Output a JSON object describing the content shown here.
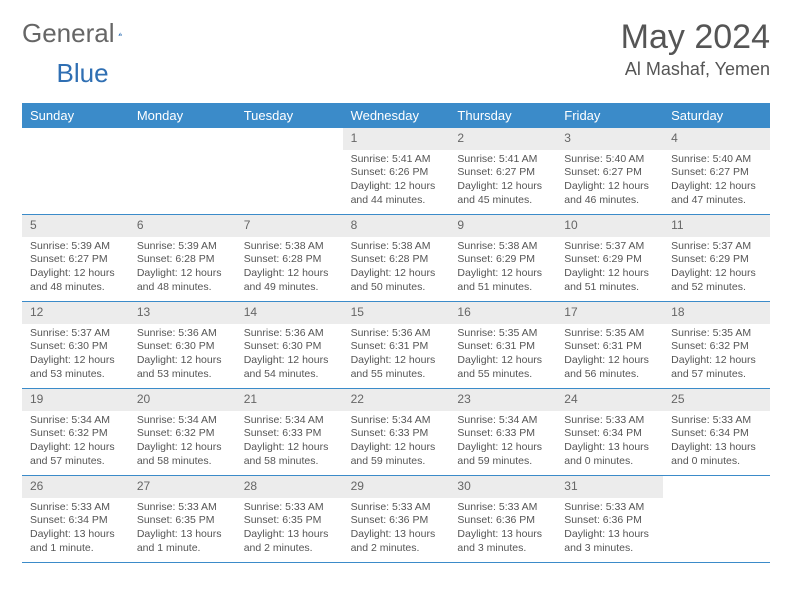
{
  "brand": {
    "part1": "General",
    "part2": "Blue"
  },
  "title": "May 2024",
  "location": "Al Mashaf, Yemen",
  "colors": {
    "header_bg": "#3b8bc9",
    "header_text": "#ffffff",
    "daynum_bg": "#ececec",
    "text": "#555555",
    "rule": "#3b8bc9",
    "logo_blue": "#2f6fb3"
  },
  "weekdays": [
    "Sunday",
    "Monday",
    "Tuesday",
    "Wednesday",
    "Thursday",
    "Friday",
    "Saturday"
  ],
  "weeks": [
    [
      {
        "n": "",
        "sunrise": "",
        "sunset": "",
        "daylight": ""
      },
      {
        "n": "",
        "sunrise": "",
        "sunset": "",
        "daylight": ""
      },
      {
        "n": "",
        "sunrise": "",
        "sunset": "",
        "daylight": ""
      },
      {
        "n": "1",
        "sunrise": "Sunrise: 5:41 AM",
        "sunset": "Sunset: 6:26 PM",
        "daylight": "Daylight: 12 hours and 44 minutes."
      },
      {
        "n": "2",
        "sunrise": "Sunrise: 5:41 AM",
        "sunset": "Sunset: 6:27 PM",
        "daylight": "Daylight: 12 hours and 45 minutes."
      },
      {
        "n": "3",
        "sunrise": "Sunrise: 5:40 AM",
        "sunset": "Sunset: 6:27 PM",
        "daylight": "Daylight: 12 hours and 46 minutes."
      },
      {
        "n": "4",
        "sunrise": "Sunrise: 5:40 AM",
        "sunset": "Sunset: 6:27 PM",
        "daylight": "Daylight: 12 hours and 47 minutes."
      }
    ],
    [
      {
        "n": "5",
        "sunrise": "Sunrise: 5:39 AM",
        "sunset": "Sunset: 6:27 PM",
        "daylight": "Daylight: 12 hours and 48 minutes."
      },
      {
        "n": "6",
        "sunrise": "Sunrise: 5:39 AM",
        "sunset": "Sunset: 6:28 PM",
        "daylight": "Daylight: 12 hours and 48 minutes."
      },
      {
        "n": "7",
        "sunrise": "Sunrise: 5:38 AM",
        "sunset": "Sunset: 6:28 PM",
        "daylight": "Daylight: 12 hours and 49 minutes."
      },
      {
        "n": "8",
        "sunrise": "Sunrise: 5:38 AM",
        "sunset": "Sunset: 6:28 PM",
        "daylight": "Daylight: 12 hours and 50 minutes."
      },
      {
        "n": "9",
        "sunrise": "Sunrise: 5:38 AM",
        "sunset": "Sunset: 6:29 PM",
        "daylight": "Daylight: 12 hours and 51 minutes."
      },
      {
        "n": "10",
        "sunrise": "Sunrise: 5:37 AM",
        "sunset": "Sunset: 6:29 PM",
        "daylight": "Daylight: 12 hours and 51 minutes."
      },
      {
        "n": "11",
        "sunrise": "Sunrise: 5:37 AM",
        "sunset": "Sunset: 6:29 PM",
        "daylight": "Daylight: 12 hours and 52 minutes."
      }
    ],
    [
      {
        "n": "12",
        "sunrise": "Sunrise: 5:37 AM",
        "sunset": "Sunset: 6:30 PM",
        "daylight": "Daylight: 12 hours and 53 minutes."
      },
      {
        "n": "13",
        "sunrise": "Sunrise: 5:36 AM",
        "sunset": "Sunset: 6:30 PM",
        "daylight": "Daylight: 12 hours and 53 minutes."
      },
      {
        "n": "14",
        "sunrise": "Sunrise: 5:36 AM",
        "sunset": "Sunset: 6:30 PM",
        "daylight": "Daylight: 12 hours and 54 minutes."
      },
      {
        "n": "15",
        "sunrise": "Sunrise: 5:36 AM",
        "sunset": "Sunset: 6:31 PM",
        "daylight": "Daylight: 12 hours and 55 minutes."
      },
      {
        "n": "16",
        "sunrise": "Sunrise: 5:35 AM",
        "sunset": "Sunset: 6:31 PM",
        "daylight": "Daylight: 12 hours and 55 minutes."
      },
      {
        "n": "17",
        "sunrise": "Sunrise: 5:35 AM",
        "sunset": "Sunset: 6:31 PM",
        "daylight": "Daylight: 12 hours and 56 minutes."
      },
      {
        "n": "18",
        "sunrise": "Sunrise: 5:35 AM",
        "sunset": "Sunset: 6:32 PM",
        "daylight": "Daylight: 12 hours and 57 minutes."
      }
    ],
    [
      {
        "n": "19",
        "sunrise": "Sunrise: 5:34 AM",
        "sunset": "Sunset: 6:32 PM",
        "daylight": "Daylight: 12 hours and 57 minutes."
      },
      {
        "n": "20",
        "sunrise": "Sunrise: 5:34 AM",
        "sunset": "Sunset: 6:32 PM",
        "daylight": "Daylight: 12 hours and 58 minutes."
      },
      {
        "n": "21",
        "sunrise": "Sunrise: 5:34 AM",
        "sunset": "Sunset: 6:33 PM",
        "daylight": "Daylight: 12 hours and 58 minutes."
      },
      {
        "n": "22",
        "sunrise": "Sunrise: 5:34 AM",
        "sunset": "Sunset: 6:33 PM",
        "daylight": "Daylight: 12 hours and 59 minutes."
      },
      {
        "n": "23",
        "sunrise": "Sunrise: 5:34 AM",
        "sunset": "Sunset: 6:33 PM",
        "daylight": "Daylight: 12 hours and 59 minutes."
      },
      {
        "n": "24",
        "sunrise": "Sunrise: 5:33 AM",
        "sunset": "Sunset: 6:34 PM",
        "daylight": "Daylight: 13 hours and 0 minutes."
      },
      {
        "n": "25",
        "sunrise": "Sunrise: 5:33 AM",
        "sunset": "Sunset: 6:34 PM",
        "daylight": "Daylight: 13 hours and 0 minutes."
      }
    ],
    [
      {
        "n": "26",
        "sunrise": "Sunrise: 5:33 AM",
        "sunset": "Sunset: 6:34 PM",
        "daylight": "Daylight: 13 hours and 1 minute."
      },
      {
        "n": "27",
        "sunrise": "Sunrise: 5:33 AM",
        "sunset": "Sunset: 6:35 PM",
        "daylight": "Daylight: 13 hours and 1 minute."
      },
      {
        "n": "28",
        "sunrise": "Sunrise: 5:33 AM",
        "sunset": "Sunset: 6:35 PM",
        "daylight": "Daylight: 13 hours and 2 minutes."
      },
      {
        "n": "29",
        "sunrise": "Sunrise: 5:33 AM",
        "sunset": "Sunset: 6:36 PM",
        "daylight": "Daylight: 13 hours and 2 minutes."
      },
      {
        "n": "30",
        "sunrise": "Sunrise: 5:33 AM",
        "sunset": "Sunset: 6:36 PM",
        "daylight": "Daylight: 13 hours and 3 minutes."
      },
      {
        "n": "31",
        "sunrise": "Sunrise: 5:33 AM",
        "sunset": "Sunset: 6:36 PM",
        "daylight": "Daylight: 13 hours and 3 minutes."
      },
      {
        "n": "",
        "sunrise": "",
        "sunset": "",
        "daylight": ""
      }
    ]
  ]
}
